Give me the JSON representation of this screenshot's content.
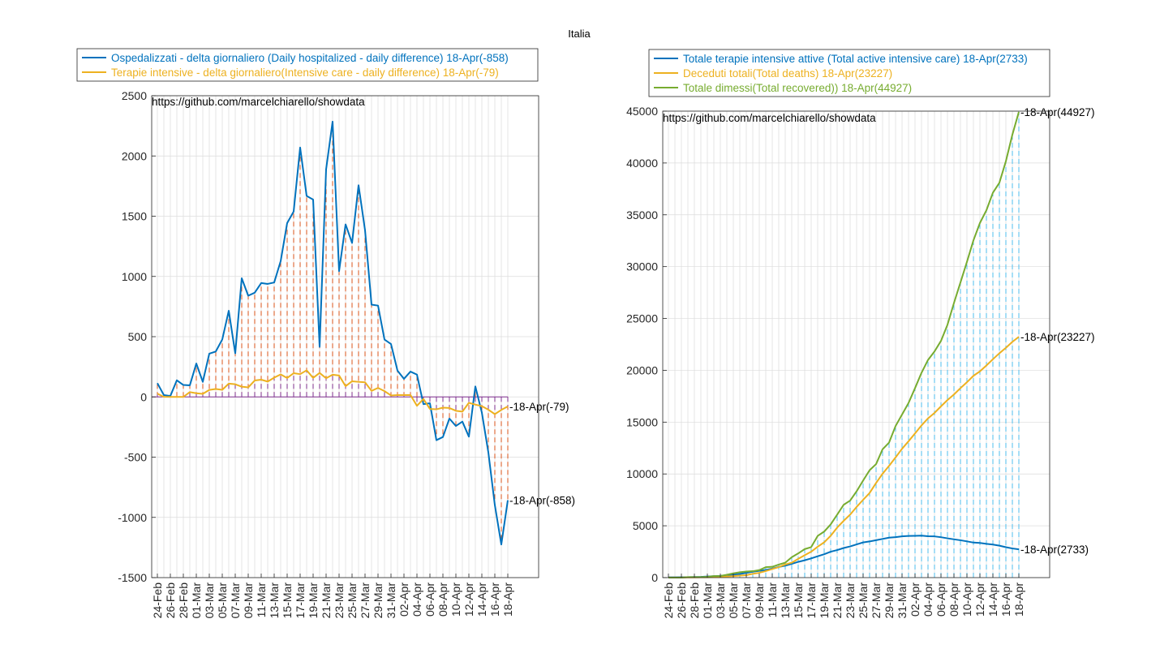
{
  "figure_title": "Italia",
  "dates": [
    "24-Feb",
    "25-Feb",
    "26-Feb",
    "27-Feb",
    "28-Feb",
    "29-Feb",
    "01-Mar",
    "02-Mar",
    "03-Mar",
    "04-Mar",
    "05-Mar",
    "06-Mar",
    "07-Mar",
    "08-Mar",
    "09-Mar",
    "10-Mar",
    "11-Mar",
    "12-Mar",
    "13-Mar",
    "14-Mar",
    "15-Mar",
    "16-Mar",
    "17-Mar",
    "18-Mar",
    "19-Mar",
    "20-Mar",
    "21-Mar",
    "22-Mar",
    "23-Mar",
    "24-Mar",
    "25-Mar",
    "26-Mar",
    "27-Mar",
    "28-Mar",
    "29-Mar",
    "30-Mar",
    "31-Mar",
    "01-Apr",
    "02-Apr",
    "03-Apr",
    "04-Apr",
    "05-Apr",
    "06-Apr",
    "07-Apr",
    "08-Apr",
    "09-Apr",
    "10-Apr",
    "11-Apr",
    "12-Apr",
    "13-Apr",
    "14-Apr",
    "15-Apr",
    "16-Apr",
    "17-Apr",
    "18-Apr"
  ],
  "chart_data": [
    {
      "type": "line",
      "ylim": [
        -1500,
        2500
      ],
      "yticks": [
        -1500,
        -1000,
        -500,
        0,
        500,
        1000,
        1500,
        2000,
        2500
      ],
      "xtick_labels": [
        "24-Feb",
        "26-Feb",
        "28-Feb",
        "01-Mar",
        "03-Mar",
        "05-Mar",
        "07-Mar",
        "09-Mar",
        "11-Mar",
        "13-Mar",
        "15-Mar",
        "17-Mar",
        "19-Mar",
        "21-Mar",
        "23-Mar",
        "25-Mar",
        "27-Mar",
        "29-Mar",
        "31-Mar",
        "02-Apr",
        "04-Apr",
        "06-Apr",
        "08-Apr",
        "10-Apr",
        "12-Apr",
        "14-Apr",
        "16-Apr",
        "18-Apr"
      ],
      "grid": true,
      "legend_placement": "top",
      "annotation": "https://github.com/marcelchiarello/showdata",
      "series": [
        {
          "name": "Ospedalizzati - delta giornaliero (Daily hospitalized - daily difference) 18-Apr(-858)",
          "end_label": "18-Apr(-858)",
          "color": "#0072BD",
          "stem_color": "#D95319",
          "values": [
            114,
            15,
            8,
            138,
            99,
            96,
            277,
            125,
            359,
            377,
            477,
            715,
            362,
            985,
            840,
            865,
            945,
            938,
            950,
            1127,
            1443,
            1539,
            2070,
            1668,
            1638,
            416,
            1889,
            2285,
            1044,
            1432,
            1278,
            1757,
            1384,
            766,
            758,
            476,
            439,
            218,
            150,
            210,
            185,
            -60,
            -53,
            -359,
            -333,
            -180,
            -241,
            -205,
            -330,
            87,
            -130,
            -460,
            -897,
            -1225,
            -858
          ]
        },
        {
          "name": "Terapie intensive - delta giornaliero(Intensive care - daily difference) 18-Apr(-79)",
          "end_label": "18-Apr(-79)",
          "color": "#EDB120",
          "stem_color": "#7E2F8E",
          "values": [
            27,
            1,
            0,
            0,
            0,
            40,
            30,
            25,
            58,
            66,
            59,
            110,
            105,
            85,
            79,
            136,
            143,
            127,
            160,
            187,
            157,
            197,
            189,
            221,
            158,
            199,
            155,
            184,
            178,
            89,
            130,
            125,
            121,
            50,
            75,
            48,
            12,
            15,
            15,
            16,
            -74,
            -17,
            -100,
            -103,
            -89,
            -92,
            -115,
            -122,
            -49,
            -64,
            -77,
            -106,
            -143,
            -108,
            -79
          ]
        }
      ]
    },
    {
      "type": "line",
      "ylim": [
        0,
        45000
      ],
      "yticks": [
        0,
        5000,
        10000,
        15000,
        20000,
        25000,
        30000,
        35000,
        40000,
        45000
      ],
      "xtick_labels": [
        "24-Feb",
        "26-Feb",
        "28-Feb",
        "01-Mar",
        "03-Mar",
        "05-Mar",
        "07-Mar",
        "09-Mar",
        "11-Mar",
        "13-Mar",
        "15-Mar",
        "17-Mar",
        "19-Mar",
        "21-Mar",
        "23-Mar",
        "25-Mar",
        "27-Mar",
        "29-Mar",
        "31-Mar",
        "02-Apr",
        "04-Apr",
        "06-Apr",
        "08-Apr",
        "10-Apr",
        "12-Apr",
        "14-Apr",
        "16-Apr",
        "18-Apr"
      ],
      "grid": true,
      "legend_placement": "top",
      "annotation": "https://github.com/marcelchiarello/showdata",
      "series": [
        {
          "name": "Totale terapie intensive attive (Total active intensive care) 18-Apr(2733)",
          "end_label": "18-Apr(2733)",
          "color": "#0072BD",
          "stem_color": "#4DBEEE",
          "values": [
            26,
            27,
            35,
            36,
            56,
            64,
            105,
            140,
            166,
            229,
            295,
            351,
            462,
            567,
            650,
            733,
            877,
            1028,
            1153,
            1328,
            1518,
            1672,
            1851,
            2060,
            2257,
            2498,
            2655,
            2857,
            3009,
            3204,
            3396,
            3489,
            3612,
            3732,
            3856,
            3906,
            3981,
            4023,
            4035,
            4053,
            3994,
            3977,
            3898,
            3792,
            3693,
            3605,
            3497,
            3381,
            3343,
            3260,
            3186,
            3079,
            2936,
            2812,
            2733
          ]
        },
        {
          "name": "Deceduti totali(Total deaths) 18-Apr(23227)",
          "end_label": "18-Apr(23227)",
          "color": "#EDB120",
          "stem_color": "#7E2F8E",
          "values": [
            7,
            10,
            12,
            17,
            21,
            29,
            34,
            52,
            79,
            107,
            148,
            197,
            233,
            366,
            463,
            631,
            827,
            1016,
            1266,
            1441,
            1809,
            2158,
            2503,
            2978,
            3405,
            4032,
            4825,
            5476,
            6077,
            6820,
            7503,
            8165,
            9134,
            10023,
            10779,
            11591,
            12428,
            13155,
            13915,
            14681,
            15362,
            15887,
            16523,
            17127,
            17669,
            18279,
            18849,
            19468,
            19899,
            20465,
            21067,
            21645,
            22170,
            22745,
            23227
          ]
        },
        {
          "name": "Totale dimessi(Total recovered)) 18-Apr(44927)",
          "end_label": "18-Apr(44927)",
          "color": "#77AC30",
          "stem_color": "#4DBEEE",
          "values": [
            1,
            1,
            3,
            45,
            46,
            50,
            83,
            149,
            160,
            276,
            414,
            523,
            589,
            622,
            724,
            1004,
            1045,
            1258,
            1439,
            1966,
            2335,
            2749,
            2941,
            4025,
            4440,
            5129,
            6072,
            7024,
            7432,
            8326,
            9362,
            10361,
            10950,
            12384,
            13030,
            14620,
            15729,
            16847,
            18278,
            19758,
            20996,
            21815,
            22837,
            24392,
            26491,
            28470,
            30455,
            32534,
            34211,
            35435,
            37130,
            38092,
            40164,
            42727,
            44927
          ]
        }
      ]
    }
  ]
}
